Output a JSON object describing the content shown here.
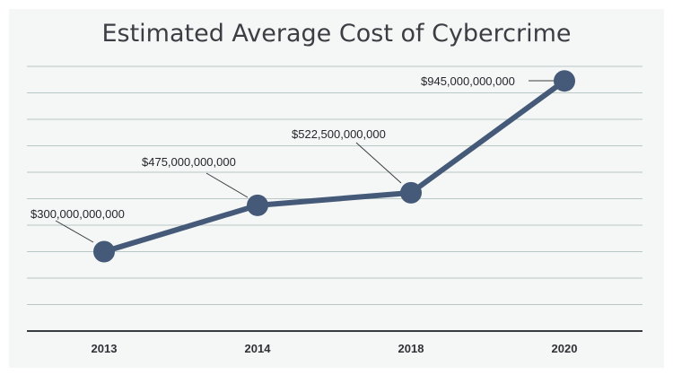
{
  "chart_data": {
    "type": "line",
    "title": "Estimated Average Cost of Cybercrime",
    "xlabel": "",
    "ylabel": "",
    "categories": [
      "2013",
      "2014",
      "2018",
      "2020"
    ],
    "series": [
      {
        "values": [
          300000000000,
          475000000000,
          522500000000,
          945000000000
        ],
        "labels": [
          "$300,000,000,000",
          "$475,000,000,000",
          "$522,500,000,000",
          "$945,000,000,000"
        ]
      }
    ],
    "ylim": [
      0,
      1000000000000
    ],
    "grid": true,
    "legend": "none",
    "colors": {
      "line": "#455a78",
      "grid": "#b9c7c7",
      "axis": "#3a3d40"
    }
  }
}
